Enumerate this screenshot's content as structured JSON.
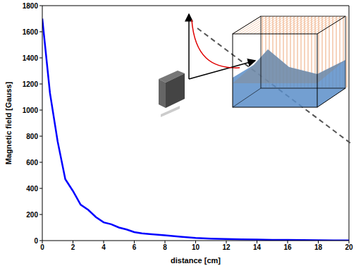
{
  "chart_data": {
    "type": "line",
    "x_label": "distance [cm]",
    "y_label": "Magnetic field [Gauss]",
    "x": [
      0,
      0.5,
      1,
      1.5,
      2,
      2.5,
      3,
      3.5,
      4,
      4.5,
      5,
      5.5,
      6,
      6.5,
      7,
      8,
      9,
      10,
      11,
      12,
      13,
      14,
      15,
      16,
      17,
      18,
      19,
      20
    ],
    "values": [
      1700,
      1130,
      760,
      470,
      380,
      275,
      235,
      180,
      140,
      125,
      100,
      85,
      65,
      55,
      50,
      40,
      30,
      20,
      15,
      12,
      10,
      8,
      6,
      5,
      4,
      3,
      2,
      2
    ],
    "color": "#0000ff",
    "xlim": [
      0,
      20
    ],
    "xticks": [
      0,
      2,
      4,
      6,
      8,
      10,
      12,
      14,
      16,
      18,
      20
    ],
    "ylim": [
      0,
      1800
    ],
    "yticks": [
      0,
      200,
      400,
      600,
      800,
      1000,
      1200,
      1400,
      1600,
      1800
    ],
    "grid": false
  }
}
